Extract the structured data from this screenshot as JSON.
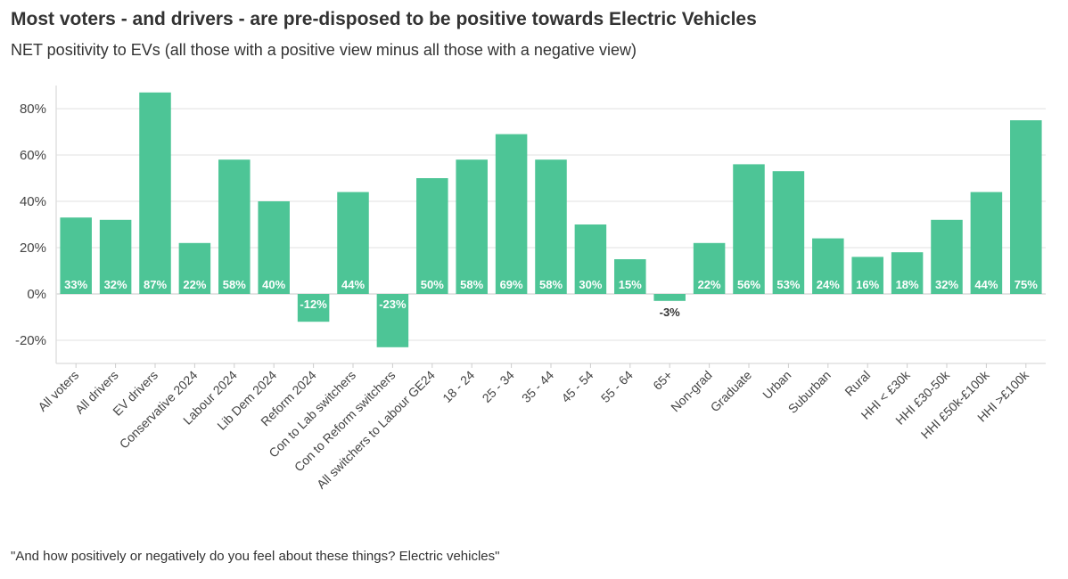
{
  "chart_data": {
    "type": "bar",
    "title": "Most voters - and drivers - are pre-disposed to be positive towards Electric Vehicles",
    "subtitle": "NET positivity to EVs (all those with a positive view minus all those with a negative view)",
    "footnote": "\"And how positively or negatively do you feel about these things? Electric vehicles\"",
    "categories": [
      "All voters",
      "All drivers",
      "EV  drivers",
      "Conservative 2024",
      "Labour 2024",
      "Lib Dem 2024",
      "Reform 2024",
      "Con to Lab switchers",
      "Con to Reform switchers",
      "All switchers to Labour GE24",
      "18 - 24",
      "25 - 34",
      "35 - 44",
      "45 - 54",
      "55 - 64",
      "65+",
      "Non-grad",
      "Graduate",
      "Urban",
      "Suburban",
      "Rural",
      "HHI < £30k",
      "HHI £30-50k",
      "HHI £50k-£100k",
      "HHI >£100k"
    ],
    "values": [
      33,
      32,
      87,
      22,
      58,
      40,
      -12,
      44,
      -23,
      50,
      58,
      69,
      58,
      30,
      15,
      -3,
      22,
      56,
      53,
      24,
      16,
      18,
      32,
      44,
      75
    ],
    "data_labels": [
      "33%",
      "32%",
      "87%",
      "22%",
      "58%",
      "40%",
      "-12%",
      "44%",
      "-23%",
      "50%",
      "58%",
      "69%",
      "58%",
      "30%",
      "15%",
      "-3%",
      "22%",
      "56%",
      "53%",
      "24%",
      "16%",
      "18%",
      "32%",
      "44%",
      "75%"
    ],
    "ylim": [
      -30,
      90
    ],
    "yticks": [
      -20,
      0,
      20,
      40,
      60,
      80
    ],
    "ytick_labels": [
      "-20%",
      "0%",
      "20%",
      "40%",
      "60%",
      "80%"
    ],
    "xlabel": "",
    "ylabel": "",
    "grid": true,
    "bar_color": "#4dc596"
  }
}
